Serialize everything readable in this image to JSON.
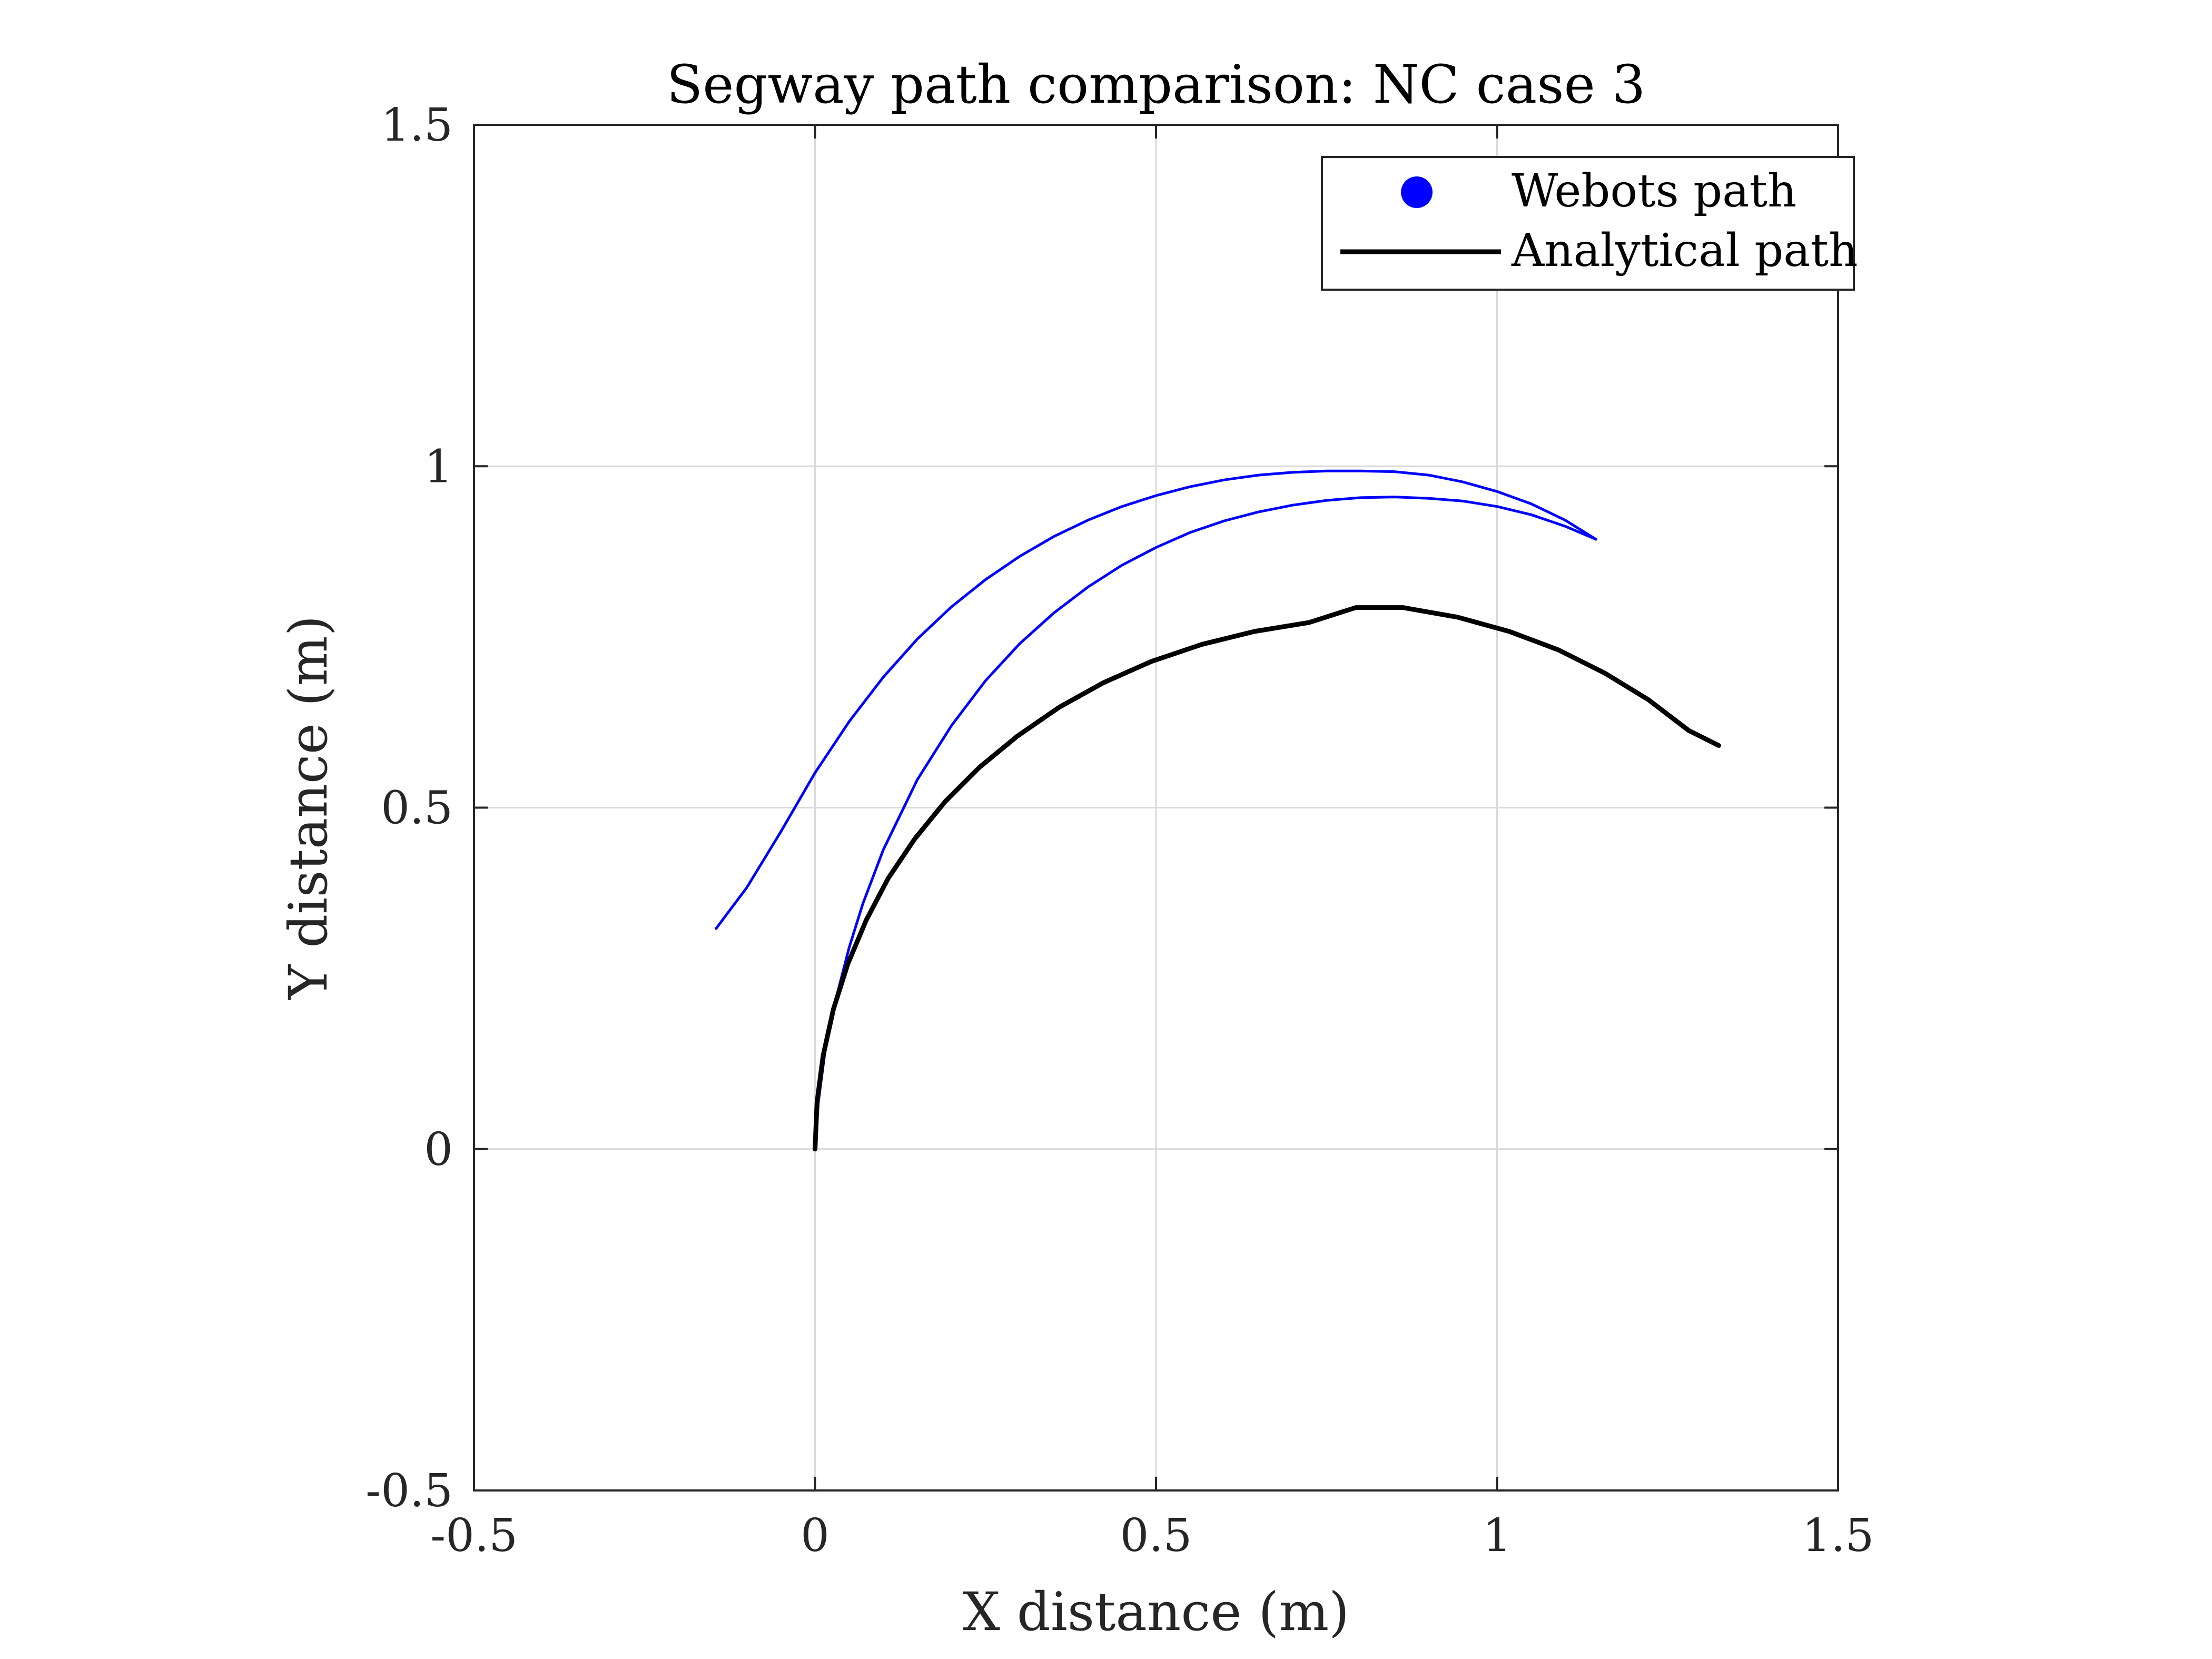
{
  "chart_data": {
    "type": "line",
    "title": "Segway path comparison: NC case 3",
    "xlabel": "X distance (m)",
    "ylabel": "Y distance (m)",
    "xlim": [
      -0.5,
      1.5
    ],
    "ylim": [
      -0.5,
      1.5
    ],
    "xticks": [
      -0.5,
      0,
      0.5,
      1,
      1.5
    ],
    "yticks": [
      -0.5,
      0,
      0.5,
      1,
      1.5
    ],
    "xtick_labels": [
      "-0.5",
      "0",
      "0.5",
      "1",
      "1.5"
    ],
    "ytick_labels": [
      "-0.5",
      "0",
      "0.5",
      "1",
      "1.5"
    ],
    "grid": true,
    "legend_position": "top-right",
    "series": [
      {
        "name": "Webots path",
        "style": "dotted markers",
        "color": "#0000ff",
        "x": [
          1.145,
          1.1,
          1.05,
          1.0,
          0.95,
          0.9,
          0.85,
          0.8,
          0.75,
          0.7,
          0.65,
          0.6,
          0.55,
          0.5,
          0.45,
          0.4,
          0.35,
          0.3,
          0.25,
          0.2,
          0.15,
          0.1,
          0.05,
          0.0,
          -0.05,
          -0.1,
          -0.145
        ],
        "y": [
          0.893,
          0.921,
          0.945,
          0.963,
          0.977,
          0.987,
          0.992,
          0.993,
          0.993,
          0.991,
          0.987,
          0.98,
          0.97,
          0.957,
          0.941,
          0.921,
          0.897,
          0.868,
          0.834,
          0.794,
          0.747,
          0.691,
          0.626,
          0.551,
          0.465,
          0.383,
          0.323
        ]
      },
      {
        "name": "",
        "style": "dotted markers",
        "color": "#0000ff",
        "x": [
          1.145,
          1.1,
          1.05,
          1.0,
          0.95,
          0.9,
          0.85,
          0.8,
          0.75,
          0.7,
          0.65,
          0.6,
          0.55,
          0.5,
          0.45,
          0.4,
          0.35,
          0.3,
          0.25,
          0.2,
          0.15,
          0.1,
          0.07,
          0.05,
          0.03,
          0.015,
          0.005,
          0.0
        ],
        "y": [
          0.893,
          0.912,
          0.929,
          0.941,
          0.949,
          0.953,
          0.955,
          0.954,
          0.95,
          0.943,
          0.933,
          0.92,
          0.903,
          0.881,
          0.855,
          0.823,
          0.785,
          0.74,
          0.686,
          0.62,
          0.541,
          0.438,
          0.359,
          0.295,
          0.217,
          0.145,
          0.07,
          0.0
        ]
      },
      {
        "name": "Analytical path",
        "style": "solid line",
        "color": "#000000",
        "x": [
          0.0,
          0.003,
          0.012,
          0.027,
          0.048,
          0.075,
          0.107,
          0.146,
          0.191,
          0.241,
          0.297,
          0.358,
          0.423,
          0.493,
          0.567,
          0.644,
          0.724,
          0.793,
          0.862,
          0.942,
          1.018,
          1.09,
          1.158,
          1.222,
          1.281,
          1.325
        ],
        "y": [
          0.0,
          0.069,
          0.137,
          0.205,
          0.271,
          0.335,
          0.396,
          0.454,
          0.509,
          0.559,
          0.605,
          0.647,
          0.683,
          0.714,
          0.739,
          0.758,
          0.771,
          0.793,
          0.793,
          0.779,
          0.758,
          0.731,
          0.697,
          0.658,
          0.613,
          0.591
        ]
      }
    ]
  }
}
